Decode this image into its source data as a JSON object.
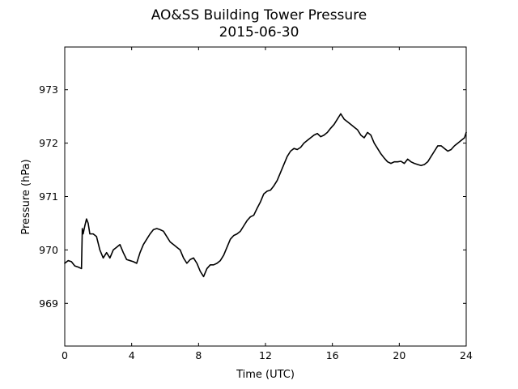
{
  "chart_data": {
    "type": "line",
    "title": "AO&SS Building Tower Pressure",
    "subtitle": "2015-06-30",
    "xlabel": "Time (UTC)",
    "ylabel": "Pressure (hPa)",
    "xlim": [
      0,
      24
    ],
    "ylim": [
      968.2,
      973.8
    ],
    "xticks": [
      0,
      4,
      8,
      12,
      16,
      20,
      24
    ],
    "yticks": [
      969,
      970,
      971,
      972,
      973
    ],
    "grid": false,
    "line_color": "#000000",
    "series": [
      {
        "x": [
          0.0,
          0.2,
          0.4,
          0.6,
          0.8,
          1.0,
          1.05,
          1.1,
          1.2,
          1.3,
          1.4,
          1.5,
          1.7,
          1.9,
          2.1,
          2.3,
          2.5,
          2.7,
          2.9,
          3.1,
          3.3,
          3.5,
          3.7,
          3.9,
          4.1,
          4.3,
          4.5,
          4.7,
          4.9,
          5.1,
          5.3,
          5.5,
          5.7,
          5.9,
          6.1,
          6.3,
          6.5,
          6.7,
          6.9,
          7.1,
          7.3,
          7.5,
          7.7,
          7.9,
          8.1,
          8.3,
          8.5,
          8.7,
          8.9,
          9.1,
          9.3,
          9.5,
          9.7,
          9.9,
          10.1,
          10.3,
          10.5,
          10.7,
          10.9,
          11.1,
          11.3,
          11.5,
          11.7,
          11.9,
          12.1,
          12.3,
          12.5,
          12.7,
          12.9,
          13.1,
          13.3,
          13.5,
          13.7,
          13.9,
          14.1,
          14.3,
          14.5,
          14.7,
          14.9,
          15.1,
          15.3,
          15.5,
          15.7,
          15.9,
          16.1,
          16.3,
          16.5,
          16.7,
          16.9,
          17.1,
          17.3,
          17.5,
          17.7,
          17.9,
          18.1,
          18.3,
          18.5,
          18.7,
          18.9,
          19.1,
          19.3,
          19.5,
          19.7,
          19.9,
          20.1,
          20.3,
          20.5,
          20.7,
          20.9,
          21.1,
          21.3,
          21.5,
          21.7,
          21.9,
          22.1,
          22.3,
          22.5,
          22.7,
          22.9,
          23.1,
          23.3,
          23.5,
          23.7,
          23.9,
          24.0
        ],
        "y": [
          969.75,
          969.8,
          969.78,
          969.7,
          969.68,
          969.65,
          970.4,
          970.3,
          970.45,
          970.58,
          970.5,
          970.3,
          970.3,
          970.25,
          970.0,
          969.85,
          969.95,
          969.85,
          970.0,
          970.05,
          970.1,
          969.95,
          969.82,
          969.8,
          969.78,
          969.75,
          969.95,
          970.1,
          970.2,
          970.3,
          970.38,
          970.4,
          970.38,
          970.35,
          970.25,
          970.15,
          970.1,
          970.05,
          970.0,
          969.85,
          969.75,
          969.82,
          969.85,
          969.75,
          969.6,
          969.5,
          969.65,
          969.72,
          969.72,
          969.75,
          969.8,
          969.9,
          970.05,
          970.2,
          970.27,
          970.3,
          970.35,
          970.45,
          970.55,
          970.62,
          970.65,
          970.78,
          970.9,
          971.05,
          971.1,
          971.12,
          971.2,
          971.3,
          971.45,
          971.6,
          971.75,
          971.85,
          971.9,
          971.88,
          971.92,
          972.0,
          972.05,
          972.1,
          972.15,
          972.18,
          972.12,
          972.15,
          972.2,
          972.28,
          972.35,
          972.45,
          972.55,
          972.45,
          972.4,
          972.35,
          972.3,
          972.25,
          972.15,
          972.1,
          972.2,
          972.15,
          972.0,
          971.9,
          971.8,
          971.72,
          971.65,
          971.62,
          971.65,
          971.65,
          971.66,
          971.62,
          971.7,
          971.65,
          971.62,
          971.6,
          971.58,
          971.6,
          971.65,
          971.75,
          971.85,
          971.95,
          971.95,
          971.9,
          971.85,
          971.88,
          971.95,
          972.0,
          972.05,
          972.1,
          972.2
        ]
      }
    ]
  }
}
